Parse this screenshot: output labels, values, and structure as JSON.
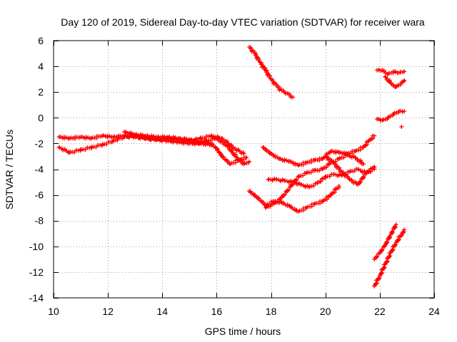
{
  "chart_data": {
    "type": "scatter",
    "title": "Day 120 of 2019, Sidereal Day-to-day VTEC variation (SDTVAR) for receiver wara",
    "xlabel": "GPS time / hours",
    "ylabel": "SDTVAR / TECUs",
    "xlim": [
      10,
      24
    ],
    "ylim": [
      -14,
      6
    ],
    "xticks": [
      10,
      12,
      14,
      16,
      18,
      20,
      22,
      24
    ],
    "yticks": [
      -14,
      -12,
      -10,
      -8,
      -6,
      -4,
      -2,
      0,
      2,
      4,
      6
    ],
    "grid": true,
    "legend": "none",
    "marker": "+",
    "series": [
      {
        "points": [
          [
            10.2,
            -1.5
          ],
          [
            10.6,
            -1.6
          ],
          [
            11.0,
            -1.5
          ],
          [
            11.4,
            -1.6
          ],
          [
            11.8,
            -1.4
          ],
          [
            12.2,
            -1.5
          ],
          [
            12.6,
            -1.4
          ],
          [
            13.0,
            -1.5
          ],
          [
            13.4,
            -1.6
          ],
          [
            13.8,
            -1.7
          ],
          [
            14.2,
            -1.8
          ],
          [
            14.6,
            -1.9
          ],
          [
            15.0,
            -2.0
          ],
          [
            15.4,
            -2.0
          ],
          [
            15.8,
            -2.1
          ]
        ]
      },
      {
        "points": [
          [
            10.2,
            -2.3
          ],
          [
            10.6,
            -2.7
          ],
          [
            11.0,
            -2.5
          ],
          [
            11.4,
            -2.3
          ],
          [
            11.8,
            -2.1
          ],
          [
            12.2,
            -1.8
          ],
          [
            12.6,
            -1.5
          ],
          [
            13.0,
            -1.4
          ],
          [
            13.4,
            -1.6
          ],
          [
            13.8,
            -1.7
          ],
          [
            14.2,
            -1.6
          ],
          [
            14.6,
            -1.7
          ],
          [
            15.0,
            -1.8
          ],
          [
            15.4,
            -1.6
          ],
          [
            15.8,
            -1.4
          ],
          [
            16.2,
            -1.6
          ],
          [
            16.6,
            -2.3
          ],
          [
            17.0,
            -2.8
          ]
        ]
      },
      {
        "points": [
          [
            12.6,
            -1.1
          ],
          [
            13.0,
            -1.3
          ],
          [
            13.4,
            -1.4
          ],
          [
            13.8,
            -1.5
          ],
          [
            14.2,
            -1.5
          ],
          [
            14.6,
            -1.6
          ],
          [
            15.0,
            -1.7
          ],
          [
            15.4,
            -1.9
          ],
          [
            15.8,
            -2.0
          ],
          [
            16.0,
            -2.4
          ],
          [
            16.2,
            -3.0
          ],
          [
            16.5,
            -3.6
          ],
          [
            16.8,
            -3.3
          ],
          [
            17.1,
            -3.1
          ]
        ]
      },
      {
        "points": [
          [
            15.2,
            -2.0
          ],
          [
            15.6,
            -1.8
          ],
          [
            16.0,
            -1.6
          ],
          [
            16.4,
            -2.2
          ],
          [
            16.7,
            -3.0
          ],
          [
            17.0,
            -3.6
          ],
          [
            17.2,
            -3.4
          ]
        ]
      },
      {
        "points": [
          [
            17.2,
            5.5
          ],
          [
            17.4,
            5.0
          ],
          [
            17.6,
            4.3
          ],
          [
            17.8,
            3.7
          ],
          [
            18.0,
            3.0
          ],
          [
            18.2,
            2.5
          ],
          [
            18.4,
            2.1
          ],
          [
            18.6,
            1.9
          ],
          [
            18.8,
            1.6
          ]
        ]
      },
      {
        "points": [
          [
            17.7,
            -2.3
          ],
          [
            18.0,
            -2.8
          ],
          [
            18.3,
            -3.2
          ],
          [
            18.7,
            -3.4
          ],
          [
            19.0,
            -3.7
          ],
          [
            19.3,
            -3.5
          ],
          [
            19.6,
            -3.3
          ],
          [
            19.9,
            -3.2
          ],
          [
            20.2,
            -2.6
          ],
          [
            20.5,
            -2.7
          ],
          [
            20.8,
            -2.8
          ],
          [
            21.1,
            -2.6
          ],
          [
            21.4,
            -2.3
          ],
          [
            21.6,
            -1.8
          ],
          [
            21.8,
            -1.4
          ]
        ]
      },
      {
        "points": [
          [
            17.9,
            -4.8
          ],
          [
            18.2,
            -4.8
          ],
          [
            18.5,
            -4.9
          ],
          [
            18.8,
            -5.0
          ],
          [
            19.1,
            -5.2
          ],
          [
            19.4,
            -5.4
          ],
          [
            19.7,
            -5.1
          ],
          [
            20.0,
            -4.6
          ],
          [
            20.3,
            -4.4
          ],
          [
            20.6,
            -4.5
          ],
          [
            20.9,
            -4.2
          ],
          [
            21.2,
            -4.0
          ],
          [
            21.5,
            -4.3
          ],
          [
            21.8,
            -4.0
          ]
        ]
      },
      {
        "points": [
          [
            17.2,
            -5.7
          ],
          [
            17.5,
            -6.2
          ],
          [
            17.8,
            -6.8
          ],
          [
            18.1,
            -6.5
          ],
          [
            18.4,
            -6.6
          ],
          [
            18.7,
            -6.9
          ],
          [
            19.0,
            -7.3
          ],
          [
            19.3,
            -7.0
          ],
          [
            19.6,
            -6.7
          ],
          [
            19.9,
            -6.5
          ],
          [
            20.2,
            -6.0
          ],
          [
            20.5,
            -5.3
          ]
        ]
      },
      {
        "points": [
          [
            17.8,
            -7.0
          ],
          [
            18.1,
            -6.7
          ],
          [
            18.4,
            -6.2
          ],
          [
            18.7,
            -5.4
          ],
          [
            19.0,
            -4.6
          ],
          [
            19.3,
            -4.3
          ],
          [
            19.6,
            -4.1
          ],
          [
            19.9,
            -4.0
          ],
          [
            20.2,
            -3.5
          ],
          [
            20.5,
            -3.2
          ],
          [
            20.8,
            -2.9
          ],
          [
            21.1,
            -3.1
          ],
          [
            21.4,
            -3.6
          ]
        ]
      },
      {
        "points": [
          [
            20.0,
            -3.0
          ],
          [
            20.3,
            -3.5
          ],
          [
            20.6,
            -4.2
          ],
          [
            20.9,
            -4.8
          ],
          [
            21.2,
            -5.2
          ],
          [
            21.5,
            -4.3
          ],
          [
            21.8,
            -3.8
          ]
        ]
      },
      {
        "points": [
          [
            21.9,
            -0.1
          ],
          [
            22.1,
            -0.2
          ],
          [
            22.3,
            0.0
          ],
          [
            22.5,
            0.3
          ],
          [
            22.7,
            0.5
          ],
          [
            22.9,
            0.5
          ]
        ]
      },
      {
        "points": [
          [
            22.8,
            -0.7
          ]
        ]
      },
      {
        "points": [
          [
            21.9,
            3.7
          ],
          [
            22.1,
            3.7
          ],
          [
            22.3,
            3.4
          ],
          [
            22.5,
            3.6
          ],
          [
            22.7,
            3.5
          ],
          [
            22.9,
            3.6
          ]
        ]
      },
      {
        "points": [
          [
            22.2,
            3.2
          ],
          [
            22.4,
            2.7
          ],
          [
            22.6,
            2.4
          ],
          [
            22.8,
            2.7
          ],
          [
            22.9,
            2.9
          ]
        ]
      },
      {
        "points": [
          [
            21.8,
            -11.0
          ],
          [
            22.0,
            -10.5
          ],
          [
            22.2,
            -9.9
          ],
          [
            22.4,
            -9.1
          ],
          [
            22.6,
            -8.3
          ]
        ]
      },
      {
        "points": [
          [
            21.8,
            -13.1
          ],
          [
            22.0,
            -12.3
          ],
          [
            22.2,
            -11.4
          ],
          [
            22.4,
            -10.5
          ],
          [
            22.6,
            -9.7
          ],
          [
            22.8,
            -9.1
          ],
          [
            22.9,
            -8.7
          ]
        ]
      }
    ],
    "colors": {
      "series": "#ff0000",
      "grid": "#a0a0a0",
      "axis": "#000000"
    }
  }
}
